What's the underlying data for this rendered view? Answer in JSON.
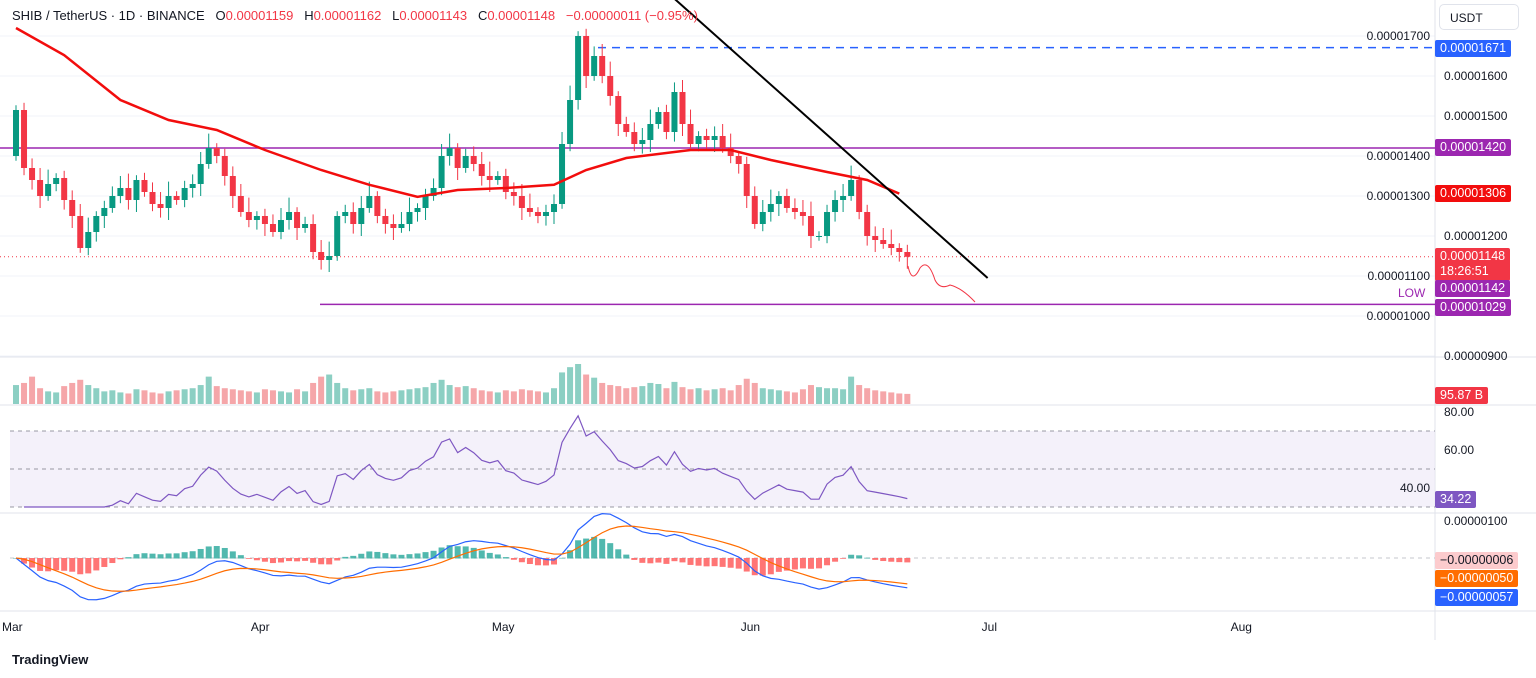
{
  "header": {
    "symbol": "SHIB / TetherUS · 1D · BINANCE",
    "o_label": "O",
    "o": "0.00001159",
    "h_label": "H",
    "h": "0.00001162",
    "l_label": "L",
    "l": "0.00001143",
    "c_label": "C",
    "c": "0.00001148",
    "change": "−0.00000011 (−0.95%)"
  },
  "currency_button": "USDT",
  "price_tags": {
    "blue_level": "0.00001671",
    "resistance": "0.00001420",
    "ma": "0.00001306",
    "last": "0.00001148",
    "countdown": "18:26:51",
    "bid": "0.00001142",
    "low": "0.00001029",
    "volume": "95.87 B",
    "rsi": "34.22",
    "macd_hist": "−0.00000006",
    "macd_signal": "−0.00000050",
    "macd_line": "−0.00000057"
  },
  "low_label": "LOW",
  "logo": "TradingView",
  "colors": {
    "up": "#089981",
    "down": "#f23645",
    "ma": "#f20d0d",
    "resistance": "#9c27b0",
    "blue": "#2962ff",
    "rsi": "#7e57c2",
    "signal": "#ff6d00"
  },
  "chart_data": {
    "type": "candlestick",
    "price_unit": "1e-8 USDT",
    "x_ticks": [
      "Mar",
      "Apr",
      "May",
      "Jun",
      "Jul",
      "Aug"
    ],
    "y_ticks": [
      "0.00001700",
      "0.00001600",
      "0.00001500",
      "0.00001400",
      "0.00001300",
      "0.00001200",
      "0.00001100",
      "0.00001000",
      "0.00000900"
    ],
    "rsi_ticks": [
      "80.00",
      "60.00",
      "40.00"
    ],
    "macd_ticks": [
      "0.00000100"
    ],
    "closes": [
      1515,
      1370,
      1340,
      1300,
      1330,
      1345,
      1290,
      1250,
      1170,
      1210,
      1250,
      1270,
      1300,
      1320,
      1290,
      1340,
      1310,
      1280,
      1270,
      1300,
      1290,
      1320,
      1330,
      1380,
      1420,
      1400,
      1350,
      1300,
      1260,
      1240,
      1250,
      1230,
      1210,
      1240,
      1260,
      1220,
      1230,
      1160,
      1140,
      1150,
      1250,
      1260,
      1230,
      1270,
      1300,
      1250,
      1230,
      1220,
      1230,
      1260,
      1270,
      1300,
      1320,
      1400,
      1420,
      1370,
      1400,
      1380,
      1350,
      1340,
      1350,
      1310,
      1300,
      1270,
      1260,
      1250,
      1260,
      1280,
      1430,
      1540,
      1700,
      1600,
      1650,
      1600,
      1550,
      1480,
      1460,
      1430,
      1440,
      1480,
      1510,
      1460,
      1560,
      1480,
      1430,
      1450,
      1440,
      1450,
      1420,
      1400,
      1380,
      1300,
      1230,
      1260,
      1280,
      1300,
      1270,
      1260,
      1250,
      1200,
      1200,
      1260,
      1290,
      1300,
      1340,
      1260,
      1200,
      1190,
      1180,
      1170,
      1160,
      1148
    ],
    "first_open": 1400,
    "volumes_b": [
      180,
      200,
      260,
      150,
      120,
      110,
      170,
      200,
      230,
      180,
      150,
      120,
      130,
      110,
      100,
      140,
      130,
      110,
      100,
      120,
      130,
      140,
      150,
      180,
      260,
      170,
      150,
      140,
      130,
      120,
      110,
      140,
      130,
      120,
      110,
      140,
      120,
      200,
      260,
      280,
      200,
      150,
      130,
      140,
      150,
      120,
      110,
      120,
      130,
      140,
      150,
      160,
      200,
      230,
      180,
      160,
      170,
      150,
      130,
      120,
      110,
      130,
      120,
      140,
      130,
      120,
      110,
      150,
      300,
      350,
      380,
      280,
      250,
      200,
      180,
      170,
      150,
      160,
      170,
      200,
      190,
      150,
      210,
      160,
      140,
      150,
      130,
      140,
      150,
      130,
      180,
      240,
      200,
      150,
      140,
      130,
      120,
      110,
      140,
      180,
      160,
      150,
      150,
      140,
      260,
      180,
      150,
      130,
      120,
      110,
      100,
      96
    ],
    "ma50": [
      [
        0,
        1720
      ],
      [
        6,
        1652
      ],
      [
        13,
        1540
      ],
      [
        19,
        1490
      ],
      [
        25,
        1465
      ],
      [
        31,
        1415
      ],
      [
        38,
        1365
      ],
      [
        44,
        1328
      ],
      [
        50,
        1298
      ],
      [
        55,
        1315
      ],
      [
        61,
        1320
      ],
      [
        67,
        1328
      ],
      [
        71,
        1365
      ],
      [
        76,
        1395
      ],
      [
        84,
        1415
      ],
      [
        89,
        1415
      ],
      [
        94,
        1390
      ],
      [
        101,
        1360
      ],
      [
        106,
        1340
      ],
      [
        110,
        1306
      ]
    ],
    "resistance": 1420,
    "blue_level": 1671,
    "support_low": 1029,
    "last_price": 1148,
    "trendline": [
      [
        71,
        1740
      ],
      [
        121,
        1095
      ]
    ],
    "rsi_bands": [
      70,
      50,
      30
    ]
  }
}
